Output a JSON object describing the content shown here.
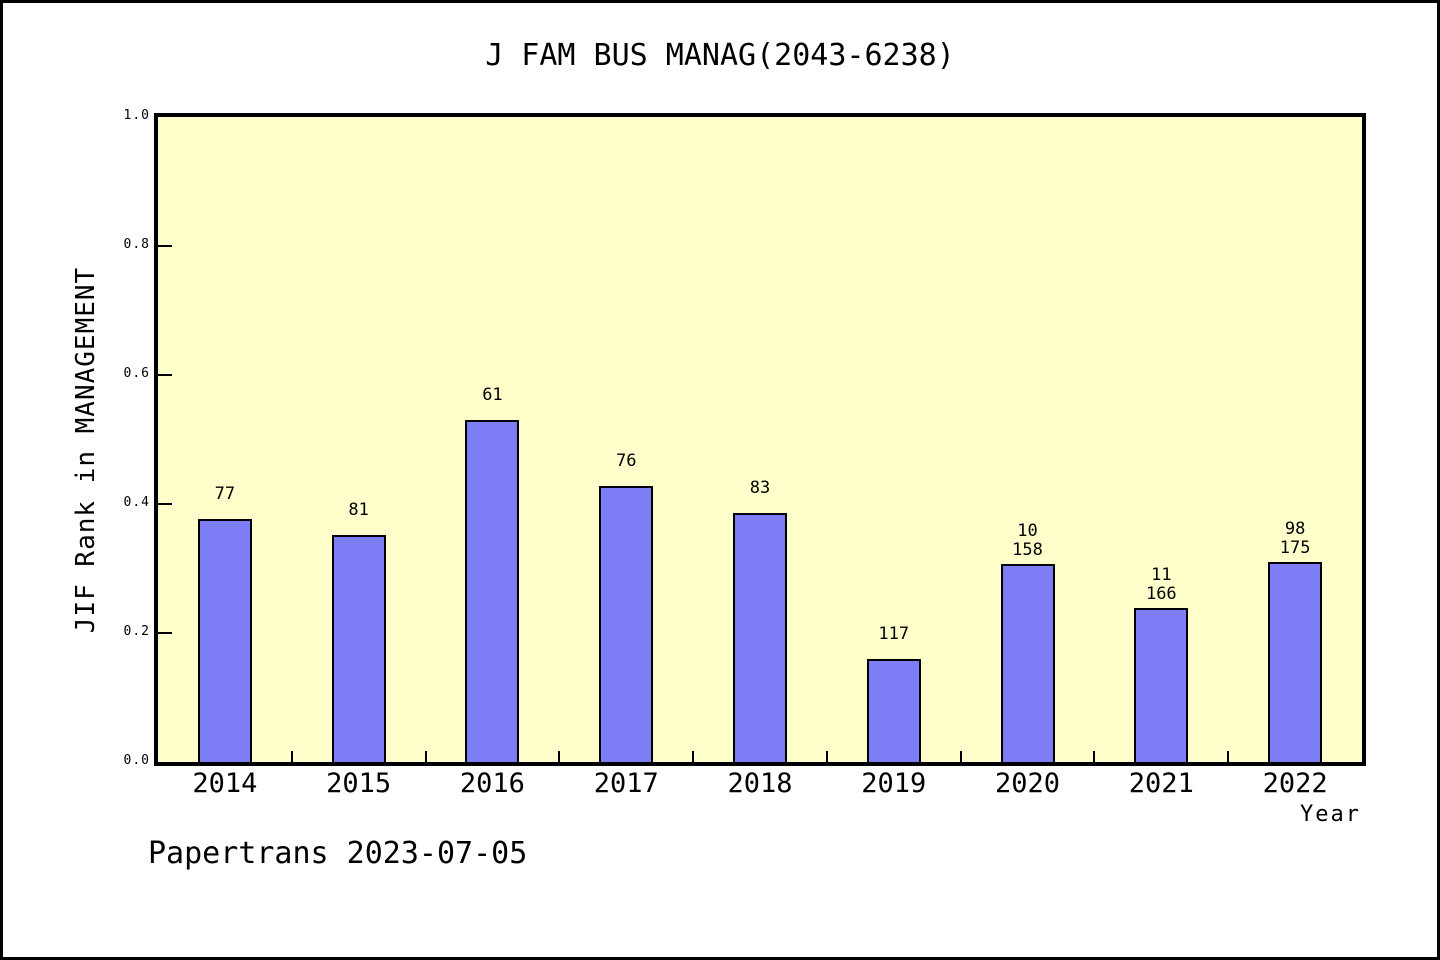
{
  "chart_data": {
    "type": "bar",
    "title": "J FAM BUS MANAG(2043-6238)",
    "xlabel": "Year",
    "ylabel": "JIF Rank in MANAGEMENT",
    "ylim": [
      0.0,
      1.0
    ],
    "ytick_labels": [
      "0.0",
      "0.2",
      "0.4",
      "0.6",
      "0.8",
      "1.0"
    ],
    "categories": [
      "2014",
      "2015",
      "2016",
      "2017",
      "2018",
      "2019",
      "2020",
      "2021",
      "2022"
    ],
    "values": [
      0.376,
      0.352,
      0.531,
      0.428,
      0.386,
      0.16,
      0.307,
      0.238,
      0.31
    ],
    "bar_labels": [
      "77",
      "81",
      "61",
      "76",
      "83",
      "117",
      "10\n158",
      "11\n166",
      "98\n175"
    ],
    "grid": false,
    "legend": null,
    "plot_background": "#ffffcc",
    "bar_color": "#7d7df5",
    "bar_edge_color": "#000000"
  },
  "footer": {
    "text": "Papertrans 2023-07-05"
  }
}
